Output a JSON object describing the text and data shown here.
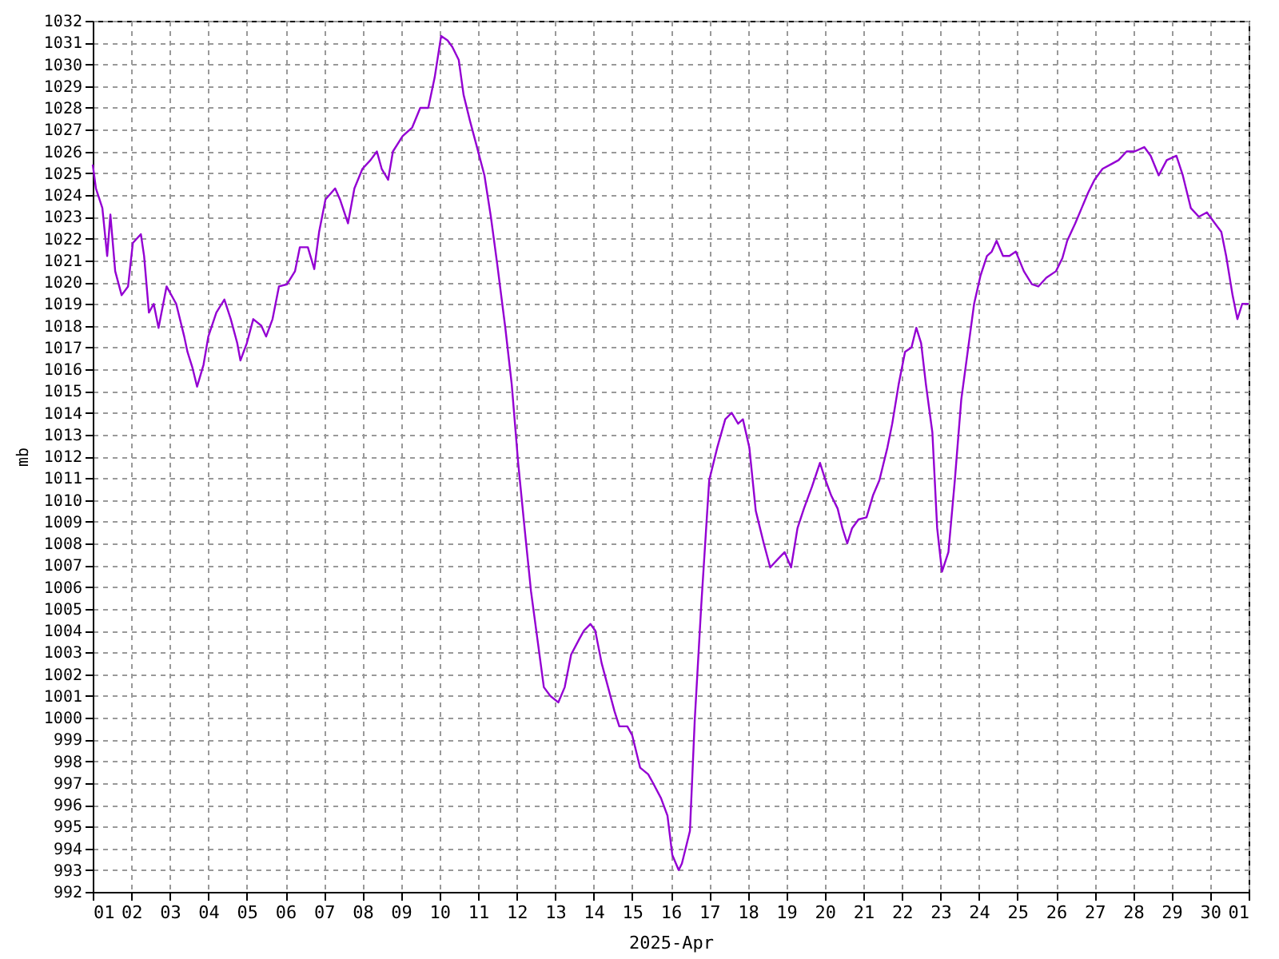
{
  "chart_data": {
    "type": "line",
    "xlabel": "2025-Apr",
    "ylabel": "mb",
    "grid": true,
    "line_style": "solid",
    "marker": "none",
    "xlim": [
      "2025-04-01",
      "2025-05-01"
    ],
    "xticks": [
      {
        "value": "2025-04-01",
        "label": "01"
      },
      {
        "value": "2025-04-02",
        "label": "02"
      },
      {
        "value": "2025-04-03",
        "label": "03"
      },
      {
        "value": "2025-04-04",
        "label": "04"
      },
      {
        "value": "2025-04-05",
        "label": "05"
      },
      {
        "value": "2025-04-06",
        "label": "06"
      },
      {
        "value": "2025-04-07",
        "label": "07"
      },
      {
        "value": "2025-04-08",
        "label": "08"
      },
      {
        "value": "2025-04-09",
        "label": "09"
      },
      {
        "value": "2025-04-10",
        "label": "10"
      },
      {
        "value": "2025-04-11",
        "label": "11"
      },
      {
        "value": "2025-04-12",
        "label": "12"
      },
      {
        "value": "2025-04-13",
        "label": "13"
      },
      {
        "value": "2025-04-14",
        "label": "14"
      },
      {
        "value": "2025-04-15",
        "label": "15"
      },
      {
        "value": "2025-04-16",
        "label": "16"
      },
      {
        "value": "2025-04-17",
        "label": "17"
      },
      {
        "value": "2025-04-18",
        "label": "18"
      },
      {
        "value": "2025-04-19",
        "label": "19"
      },
      {
        "value": "2025-04-20",
        "label": "20"
      },
      {
        "value": "2025-04-21",
        "label": "21"
      },
      {
        "value": "2025-04-22",
        "label": "22"
      },
      {
        "value": "2025-04-23",
        "label": "23"
      },
      {
        "value": "2025-04-24",
        "label": "24"
      },
      {
        "value": "2025-04-25",
        "label": "25"
      },
      {
        "value": "2025-04-26",
        "label": "26"
      },
      {
        "value": "2025-04-27",
        "label": "27"
      },
      {
        "value": "2025-04-28",
        "label": "28"
      },
      {
        "value": "2025-04-29",
        "label": "29"
      },
      {
        "value": "2025-04-30",
        "label": "30"
      },
      {
        "value": "2025-05-01",
        "label": "01"
      }
    ],
    "ylim": [
      992,
      1032
    ],
    "yticks": [
      992,
      993,
      994,
      995,
      996,
      997,
      998,
      999,
      1000,
      1001,
      1002,
      1003,
      1004,
      1005,
      1006,
      1007,
      1008,
      1009,
      1010,
      1011,
      1012,
      1013,
      1014,
      1015,
      1016,
      1017,
      1018,
      1019,
      1020,
      1021,
      1022,
      1023,
      1024,
      1025,
      1026,
      1027,
      1028,
      1029,
      1030,
      1031,
      1032
    ],
    "series": [
      {
        "color": "#9400d3",
        "x": [
          "2025-04-01T00:00",
          "2025-04-01T02:00",
          "2025-04-01T06:00",
          "2025-04-01T09:00",
          "2025-04-01T11:00",
          "2025-04-01T14:00",
          "2025-04-01T18:00",
          "2025-04-01T22:00",
          "2025-04-02T01:00",
          "2025-04-02T06:00",
          "2025-04-02T08:00",
          "2025-04-02T11:00",
          "2025-04-02T14:00",
          "2025-04-02T17:00",
          "2025-04-02T22:00",
          "2025-04-03T04:00",
          "2025-04-03T09:00",
          "2025-04-03T11:00",
          "2025-04-03T14:00",
          "2025-04-03T17:00",
          "2025-04-03T21:00",
          "2025-04-04T00:00",
          "2025-04-04T05:00",
          "2025-04-04T10:00",
          "2025-04-04T14:00",
          "2025-04-04T18:00",
          "2025-04-04T20:00",
          "2025-04-05T00:00",
          "2025-04-05T04:00",
          "2025-04-05T09:00",
          "2025-04-05T12:00",
          "2025-04-05T16:00",
          "2025-04-05T20:00",
          "2025-04-06T01:00",
          "2025-04-06T06:00",
          "2025-04-06T09:00",
          "2025-04-06T14:00",
          "2025-04-06T18:00",
          "2025-04-06T21:00",
          "2025-04-07T01:00",
          "2025-04-07T07:00",
          "2025-04-07T10:00",
          "2025-04-07T15:00",
          "2025-04-07T19:00",
          "2025-04-08T00:00",
          "2025-04-08T05:00",
          "2025-04-08T09:00",
          "2025-04-08T12:00",
          "2025-04-08T16:00",
          "2025-04-08T19:00",
          "2025-04-09T01:00",
          "2025-04-09T07:00",
          "2025-04-09T12:00",
          "2025-04-09T17:00",
          "2025-04-09T21:00",
          "2025-04-10T01:00",
          "2025-04-10T05:00",
          "2025-04-10T08:00",
          "2025-04-10T12:00",
          "2025-04-10T15:00",
          "2025-04-10T19:00",
          "2025-04-10T23:00",
          "2025-04-11T04:00",
          "2025-04-11T08:00",
          "2025-04-11T12:00",
          "2025-04-11T17:00",
          "2025-04-11T21:00",
          "2025-04-12T01:00",
          "2025-04-12T05:00",
          "2025-04-12T09:00",
          "2025-04-12T13:00",
          "2025-04-12T17:00",
          "2025-04-12T21:00",
          "2025-04-13T02:00",
          "2025-04-13T06:00",
          "2025-04-13T10:00",
          "2025-04-13T15:00",
          "2025-04-13T18:00",
          "2025-04-13T22:00",
          "2025-04-14T01:00",
          "2025-04-14T05:00",
          "2025-04-14T09:00",
          "2025-04-14T13:00",
          "2025-04-14T16:00",
          "2025-04-14T21:00",
          "2025-04-15T00:00",
          "2025-04-15T05:00",
          "2025-04-15T10:00",
          "2025-04-15T13:00",
          "2025-04-15T18:00",
          "2025-04-15T22:00",
          "2025-04-16T01:00",
          "2025-04-16T05:00",
          "2025-04-16T07:00",
          "2025-04-16T12:00",
          "2025-04-16T15:00",
          "2025-04-16T19:00",
          "2025-04-17T00:00",
          "2025-04-17T05:00",
          "2025-04-17T10:00",
          "2025-04-17T14:00",
          "2025-04-17T18:00",
          "2025-04-17T21:00",
          "2025-04-18T01:00",
          "2025-04-18T05:00",
          "2025-04-18T10:00",
          "2025-04-18T14:00",
          "2025-04-18T19:00",
          "2025-04-18T23:00",
          "2025-04-19T03:00",
          "2025-04-19T07:00",
          "2025-04-19T11:00",
          "2025-04-19T16:00",
          "2025-04-19T21:00",
          "2025-04-20T00:00",
          "2025-04-20T04:00",
          "2025-04-20T08:00",
          "2025-04-20T11:00",
          "2025-04-20T14:00",
          "2025-04-20T17:00",
          "2025-04-20T21:00",
          "2025-04-21T02:00",
          "2025-04-21T06:00",
          "2025-04-21T10:00",
          "2025-04-21T15:00",
          "2025-04-21T18:00",
          "2025-04-21T22:00",
          "2025-04-22T02:00",
          "2025-04-22T06:00",
          "2025-04-22T09:00",
          "2025-04-22T12:00",
          "2025-04-22T15:00",
          "2025-04-22T19:00",
          "2025-04-22T22:00",
          "2025-04-23T01:00",
          "2025-04-23T05:00",
          "2025-04-23T09:00",
          "2025-04-23T13:00",
          "2025-04-23T17:00",
          "2025-04-23T21:00",
          "2025-04-24T01:00",
          "2025-04-24T05:00",
          "2025-04-24T08:00",
          "2025-04-24T11:00",
          "2025-04-24T15:00",
          "2025-04-24T19:00",
          "2025-04-24T23:00",
          "2025-04-25T04:00",
          "2025-04-25T09:00",
          "2025-04-25T13:00",
          "2025-04-25T18:00",
          "2025-04-26T00:00",
          "2025-04-26T04:00",
          "2025-04-26T07:00",
          "2025-04-26T12:00",
          "2025-04-26T16:00",
          "2025-04-26T20:00",
          "2025-04-27T00:00",
          "2025-04-27T05:00",
          "2025-04-27T10:00",
          "2025-04-27T15:00",
          "2025-04-27T20:00",
          "2025-04-28T01:00",
          "2025-04-28T07:00",
          "2025-04-28T11:00",
          "2025-04-28T16:00",
          "2025-04-28T21:00",
          "2025-04-29T03:00",
          "2025-04-29T07:00",
          "2025-04-29T12:00",
          "2025-04-29T17:00",
          "2025-04-29T22:00",
          "2025-04-30T03:00",
          "2025-04-30T07:00",
          "2025-04-30T10:00",
          "2025-04-30T14:00",
          "2025-04-30T17:00",
          "2025-04-30T20:00",
          "2025-05-01T00:00"
        ],
        "values": [
          1025.4,
          1024.3,
          1023.4,
          1021.2,
          1023.1,
          1020.5,
          1019.4,
          1019.8,
          1021.8,
          1022.2,
          1021.2,
          1018.6,
          1019.0,
          1017.9,
          1019.8,
          1019.0,
          1017.5,
          1016.8,
          1016.1,
          1015.2,
          1016.2,
          1017.5,
          1018.6,
          1019.2,
          1018.3,
          1017.2,
          1016.4,
          1017.2,
          1018.3,
          1018.0,
          1017.5,
          1018.3,
          1019.8,
          1019.9,
          1020.5,
          1021.6,
          1021.6,
          1020.6,
          1022.3,
          1023.8,
          1024.3,
          1023.8,
          1022.7,
          1024.3,
          1025.2,
          1025.6,
          1026.0,
          1025.2,
          1024.7,
          1026.0,
          1026.7,
          1027.1,
          1028.0,
          1028.0,
          1029.4,
          1031.3,
          1031.1,
          1030.8,
          1030.2,
          1028.6,
          1027.4,
          1026.3,
          1024.9,
          1023.0,
          1020.8,
          1017.9,
          1015.3,
          1011.7,
          1008.7,
          1005.8,
          1003.6,
          1001.4,
          1001.0,
          1000.7,
          1001.4,
          1002.9,
          1003.6,
          1004.0,
          1004.3,
          1004.0,
          1002.5,
          1001.4,
          1000.3,
          999.6,
          999.6,
          999.2,
          997.7,
          997.4,
          997.0,
          996.3,
          995.5,
          993.7,
          993.0,
          993.3,
          994.8,
          999.9,
          1005.1,
          1010.9,
          1012.4,
          1013.7,
          1014.0,
          1013.5,
          1013.7,
          1012.4,
          1009.5,
          1008.0,
          1006.9,
          1007.3,
          1007.6,
          1006.9,
          1008.7,
          1009.6,
          1010.6,
          1011.7,
          1011.0,
          1010.2,
          1009.6,
          1008.7,
          1008.0,
          1008.7,
          1009.1,
          1009.2,
          1010.2,
          1010.9,
          1012.4,
          1013.5,
          1015.3,
          1016.8,
          1017.0,
          1017.9,
          1017.2,
          1015.3,
          1013.1,
          1008.7,
          1006.7,
          1007.6,
          1010.9,
          1014.6,
          1016.8,
          1019.0,
          1020.3,
          1021.2,
          1021.4,
          1021.9,
          1021.2,
          1021.2,
          1021.4,
          1020.5,
          1019.9,
          1019.8,
          1020.2,
          1020.5,
          1021.1,
          1021.9,
          1022.7,
          1023.4,
          1024.1,
          1024.7,
          1025.2,
          1025.4,
          1025.6,
          1026.0,
          1026.0,
          1026.2,
          1025.8,
          1024.9,
          1025.6,
          1025.8,
          1024.9,
          1023.4,
          1023.0,
          1023.2,
          1022.7,
          1022.3,
          1021.2,
          1019.4,
          1018.3,
          1019.0,
          1019.0
        ]
      }
    ]
  }
}
